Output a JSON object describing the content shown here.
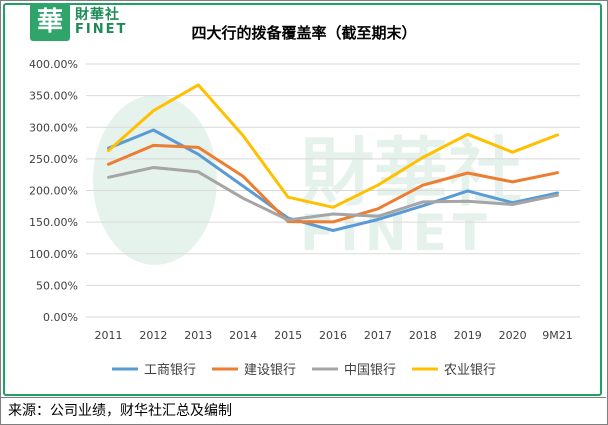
{
  "logo": {
    "glyph": "華",
    "cn": "財華社",
    "en": "FINET"
  },
  "watermark": {
    "cn": "財華社",
    "en": "FINET"
  },
  "source": "来源：公司业绩，财华社汇总及编制",
  "chart_data": {
    "type": "line",
    "title": "四大行的拨备覆盖率（截至期末）",
    "xlabel": "",
    "ylabel": "",
    "categories": [
      "2011",
      "2012",
      "2013",
      "2014",
      "2015",
      "2016",
      "2017",
      "2018",
      "2019",
      "2020",
      "9M21"
    ],
    "ylim": [
      0,
      400
    ],
    "ytick_step": 50,
    "ytick_labels": [
      "0.00%",
      "50.00%",
      "100.00%",
      "150.00%",
      "200.00%",
      "250.00%",
      "300.00%",
      "350.00%",
      "400.00%"
    ],
    "grid": true,
    "legend_position": "bottom",
    "series": [
      {
        "name": "工商银行",
        "color": "#5b9bd5",
        "values": [
          266.9,
          295.6,
          257.2,
          206.9,
          156.3,
          136.7,
          154.1,
          175.8,
          199.3,
          180.7,
          196.0
        ]
      },
      {
        "name": "建设银行",
        "color": "#ed7d31",
        "values": [
          241.4,
          271.3,
          268.2,
          222.3,
          150.9,
          150.4,
          171.1,
          208.4,
          227.7,
          213.6,
          228.1
        ]
      },
      {
        "name": "中国银行",
        "color": "#a5a5a5",
        "values": [
          220.8,
          236.3,
          229.4,
          187.6,
          153.3,
          162.8,
          159.2,
          182.0,
          182.9,
          177.8,
          192.5
        ]
      },
      {
        "name": "农业银行",
        "color": "#ffc000",
        "values": [
          263.1,
          326.1,
          367.0,
          286.5,
          189.4,
          173.4,
          208.4,
          252.2,
          288.8,
          260.6,
          287.9
        ]
      }
    ]
  }
}
